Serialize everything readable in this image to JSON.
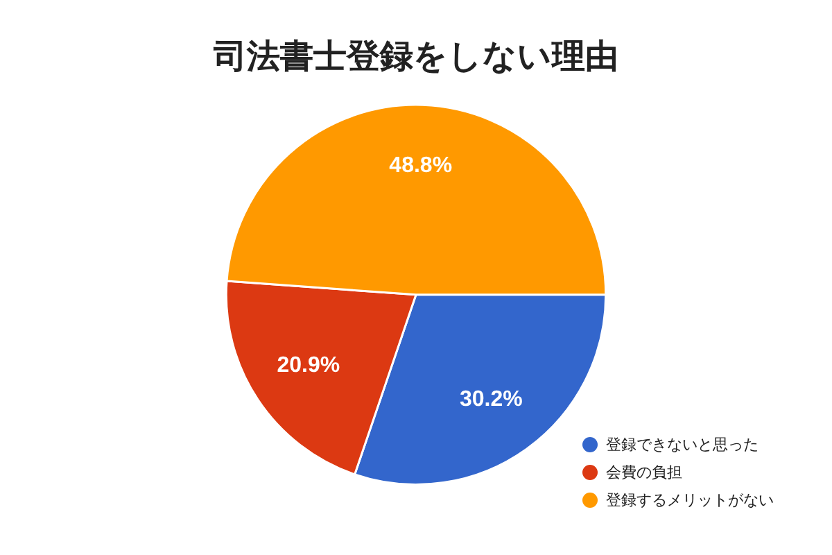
{
  "chart_data": {
    "type": "pie",
    "title": "司法書士登録をしない理由",
    "categories": [
      "登録できないと思った",
      "会費の負担",
      "登録するメリットがない"
    ],
    "values": [
      30.2,
      20.9,
      48.8
    ],
    "colors": [
      "#3366cc",
      "#dc3912",
      "#ff9900"
    ],
    "value_labels": [
      "30.2%",
      "20.9%",
      "48.8%"
    ],
    "legend": "bottom right"
  }
}
